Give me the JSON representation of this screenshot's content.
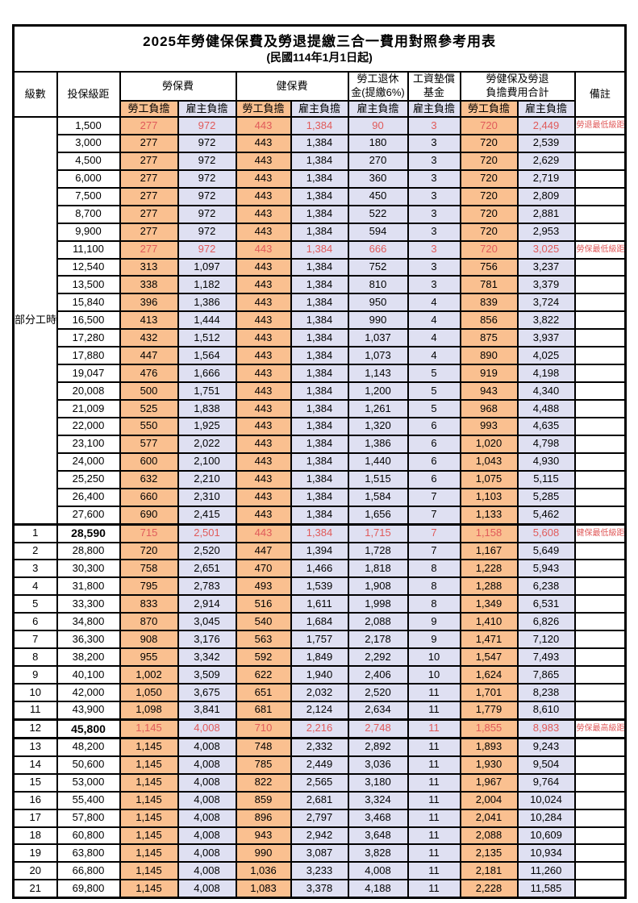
{
  "title": "2025年勞健保保費及勞退提繳三合一費用對照參考用表",
  "subtitle": "(民國114年1月1日起)",
  "header": {
    "level": "級數",
    "bracket": "投保級距",
    "labor_insurance": "勞保費",
    "health_insurance": "健保費",
    "pension_line1": "勞工退休",
    "pension_line2": "金(提繳6%)",
    "wage_fund_line1": "工資墊償",
    "wage_fund_line2": "基金",
    "total_line1": "勞健保及勞退",
    "total_line2": "負擔費用合計",
    "remark": "備註",
    "employee": "勞工負擔",
    "employer": "雇主負擔"
  },
  "part_time_label": "部分工時",
  "part_time_rowspan": 23,
  "colors": {
    "employee_bg": "#FAC090",
    "employer_bg": "#DFE0F2",
    "highlight_text": "#E05A5A",
    "border": "#000000"
  },
  "rows": [
    {
      "level": "",
      "bracket": "1,500",
      "values": [
        "277",
        "972",
        "443",
        "1,384",
        "90",
        "3",
        "720",
        "2,449"
      ],
      "remark": "勞退最低級距",
      "highlight": true,
      "bold_bracket": false,
      "section_start": false
    },
    {
      "level": "",
      "bracket": "3,000",
      "values": [
        "277",
        "972",
        "443",
        "1,384",
        "180",
        "3",
        "720",
        "2,539"
      ],
      "remark": "",
      "highlight": false,
      "bold_bracket": false,
      "section_start": false
    },
    {
      "level": "",
      "bracket": "4,500",
      "values": [
        "277",
        "972",
        "443",
        "1,384",
        "270",
        "3",
        "720",
        "2,629"
      ],
      "remark": "",
      "highlight": false,
      "bold_bracket": false,
      "section_start": false
    },
    {
      "level": "",
      "bracket": "6,000",
      "values": [
        "277",
        "972",
        "443",
        "1,384",
        "360",
        "3",
        "720",
        "2,719"
      ],
      "remark": "",
      "highlight": false,
      "bold_bracket": false,
      "section_start": false
    },
    {
      "level": "",
      "bracket": "7,500",
      "values": [
        "277",
        "972",
        "443",
        "1,384",
        "450",
        "3",
        "720",
        "2,809"
      ],
      "remark": "",
      "highlight": false,
      "bold_bracket": false,
      "section_start": false
    },
    {
      "level": "",
      "bracket": "8,700",
      "values": [
        "277",
        "972",
        "443",
        "1,384",
        "522",
        "3",
        "720",
        "2,881"
      ],
      "remark": "",
      "highlight": false,
      "bold_bracket": false,
      "section_start": false
    },
    {
      "level": "",
      "bracket": "9,900",
      "values": [
        "277",
        "972",
        "443",
        "1,384",
        "594",
        "3",
        "720",
        "2,953"
      ],
      "remark": "",
      "highlight": false,
      "bold_bracket": false,
      "section_start": false
    },
    {
      "level": "",
      "bracket": "11,100",
      "values": [
        "277",
        "972",
        "443",
        "1,384",
        "666",
        "3",
        "720",
        "3,025"
      ],
      "remark": "勞保最低級距",
      "highlight": true,
      "bold_bracket": false,
      "section_start": false
    },
    {
      "level": "",
      "bracket": "12,540",
      "values": [
        "313",
        "1,097",
        "443",
        "1,384",
        "752",
        "3",
        "756",
        "3,237"
      ],
      "remark": "",
      "highlight": false,
      "bold_bracket": false,
      "section_start": false
    },
    {
      "level": "",
      "bracket": "13,500",
      "values": [
        "338",
        "1,182",
        "443",
        "1,384",
        "810",
        "3",
        "781",
        "3,379"
      ],
      "remark": "",
      "highlight": false,
      "bold_bracket": false,
      "section_start": false
    },
    {
      "level": "",
      "bracket": "15,840",
      "values": [
        "396",
        "1,386",
        "443",
        "1,384",
        "950",
        "4",
        "839",
        "3,724"
      ],
      "remark": "",
      "highlight": false,
      "bold_bracket": false,
      "section_start": false
    },
    {
      "level": "",
      "bracket": "16,500",
      "values": [
        "413",
        "1,444",
        "443",
        "1,384",
        "990",
        "4",
        "856",
        "3,822"
      ],
      "remark": "",
      "highlight": false,
      "bold_bracket": false,
      "section_start": false
    },
    {
      "level": "",
      "bracket": "17,280",
      "values": [
        "432",
        "1,512",
        "443",
        "1,384",
        "1,037",
        "4",
        "875",
        "3,937"
      ],
      "remark": "",
      "highlight": false,
      "bold_bracket": false,
      "section_start": false
    },
    {
      "level": "",
      "bracket": "17,880",
      "values": [
        "447",
        "1,564",
        "443",
        "1,384",
        "1,073",
        "4",
        "890",
        "4,025"
      ],
      "remark": "",
      "highlight": false,
      "bold_bracket": false,
      "section_start": false
    },
    {
      "level": "",
      "bracket": "19,047",
      "values": [
        "476",
        "1,666",
        "443",
        "1,384",
        "1,143",
        "5",
        "919",
        "4,198"
      ],
      "remark": "",
      "highlight": false,
      "bold_bracket": false,
      "section_start": false
    },
    {
      "level": "",
      "bracket": "20,008",
      "values": [
        "500",
        "1,751",
        "443",
        "1,384",
        "1,200",
        "5",
        "943",
        "4,340"
      ],
      "remark": "",
      "highlight": false,
      "bold_bracket": false,
      "section_start": false
    },
    {
      "level": "",
      "bracket": "21,009",
      "values": [
        "525",
        "1,838",
        "443",
        "1,384",
        "1,261",
        "5",
        "968",
        "4,488"
      ],
      "remark": "",
      "highlight": false,
      "bold_bracket": false,
      "section_start": false
    },
    {
      "level": "",
      "bracket": "22,000",
      "values": [
        "550",
        "1,925",
        "443",
        "1,384",
        "1,320",
        "6",
        "993",
        "4,635"
      ],
      "remark": "",
      "highlight": false,
      "bold_bracket": false,
      "section_start": false
    },
    {
      "level": "",
      "bracket": "23,100",
      "values": [
        "577",
        "2,022",
        "443",
        "1,384",
        "1,386",
        "6",
        "1,020",
        "4,798"
      ],
      "remark": "",
      "highlight": false,
      "bold_bracket": false,
      "section_start": false
    },
    {
      "level": "",
      "bracket": "24,000",
      "values": [
        "600",
        "2,100",
        "443",
        "1,384",
        "1,440",
        "6",
        "1,043",
        "4,930"
      ],
      "remark": "",
      "highlight": false,
      "bold_bracket": false,
      "section_start": false
    },
    {
      "level": "",
      "bracket": "25,250",
      "values": [
        "632",
        "2,210",
        "443",
        "1,384",
        "1,515",
        "6",
        "1,075",
        "5,115"
      ],
      "remark": "",
      "highlight": false,
      "bold_bracket": false,
      "section_start": false
    },
    {
      "level": "",
      "bracket": "26,400",
      "values": [
        "660",
        "2,310",
        "443",
        "1,384",
        "1,584",
        "7",
        "1,103",
        "5,285"
      ],
      "remark": "",
      "highlight": false,
      "bold_bracket": false,
      "section_start": false
    },
    {
      "level": "",
      "bracket": "27,600",
      "values": [
        "690",
        "2,415",
        "443",
        "1,384",
        "1,656",
        "7",
        "1,133",
        "5,462"
      ],
      "remark": "",
      "highlight": false,
      "bold_bracket": false,
      "section_start": false
    },
    {
      "level": "1",
      "bracket": "28,590",
      "values": [
        "715",
        "2,501",
        "443",
        "1,384",
        "1,715",
        "7",
        "1,158",
        "5,608"
      ],
      "remark": "健保最低級距",
      "highlight": true,
      "bold_bracket": true,
      "section_start": true
    },
    {
      "level": "2",
      "bracket": "28,800",
      "values": [
        "720",
        "2,520",
        "447",
        "1,394",
        "1,728",
        "7",
        "1,167",
        "5,649"
      ],
      "remark": "",
      "highlight": false,
      "bold_bracket": false,
      "section_start": false
    },
    {
      "level": "3",
      "bracket": "30,300",
      "values": [
        "758",
        "2,651",
        "470",
        "1,466",
        "1,818",
        "8",
        "1,228",
        "5,943"
      ],
      "remark": "",
      "highlight": false,
      "bold_bracket": false,
      "section_start": false
    },
    {
      "level": "4",
      "bracket": "31,800",
      "values": [
        "795",
        "2,783",
        "493",
        "1,539",
        "1,908",
        "8",
        "1,288",
        "6,238"
      ],
      "remark": "",
      "highlight": false,
      "bold_bracket": false,
      "section_start": false
    },
    {
      "level": "5",
      "bracket": "33,300",
      "values": [
        "833",
        "2,914",
        "516",
        "1,611",
        "1,998",
        "8",
        "1,349",
        "6,531"
      ],
      "remark": "",
      "highlight": false,
      "bold_bracket": false,
      "section_start": false
    },
    {
      "level": "6",
      "bracket": "34,800",
      "values": [
        "870",
        "3,045",
        "540",
        "1,684",
        "2,088",
        "9",
        "1,410",
        "6,826"
      ],
      "remark": "",
      "highlight": false,
      "bold_bracket": false,
      "section_start": false
    },
    {
      "level": "7",
      "bracket": "36,300",
      "values": [
        "908",
        "3,176",
        "563",
        "1,757",
        "2,178",
        "9",
        "1,471",
        "7,120"
      ],
      "remark": "",
      "highlight": false,
      "bold_bracket": false,
      "section_start": false
    },
    {
      "level": "8",
      "bracket": "38,200",
      "values": [
        "955",
        "3,342",
        "592",
        "1,849",
        "2,292",
        "10",
        "1,547",
        "7,493"
      ],
      "remark": "",
      "highlight": false,
      "bold_bracket": false,
      "section_start": false
    },
    {
      "level": "9",
      "bracket": "40,100",
      "values": [
        "1,002",
        "3,509",
        "622",
        "1,940",
        "2,406",
        "10",
        "1,624",
        "7,865"
      ],
      "remark": "",
      "highlight": false,
      "bold_bracket": false,
      "section_start": false
    },
    {
      "level": "10",
      "bracket": "42,000",
      "values": [
        "1,050",
        "3,675",
        "651",
        "2,032",
        "2,520",
        "11",
        "1,701",
        "8,238"
      ],
      "remark": "",
      "highlight": false,
      "bold_bracket": false,
      "section_start": false
    },
    {
      "level": "11",
      "bracket": "43,900",
      "values": [
        "1,098",
        "3,841",
        "681",
        "2,124",
        "2,634",
        "11",
        "1,779",
        "8,610"
      ],
      "remark": "",
      "highlight": false,
      "bold_bracket": false,
      "section_start": false
    },
    {
      "level": "12",
      "bracket": "45,800",
      "values": [
        "1,145",
        "4,008",
        "710",
        "2,216",
        "2,748",
        "11",
        "1,855",
        "8,983"
      ],
      "remark": "勞保最高級距",
      "highlight": true,
      "bold_bracket": true,
      "section_start": true
    },
    {
      "level": "13",
      "bracket": "48,200",
      "values": [
        "1,145",
        "4,008",
        "748",
        "2,332",
        "2,892",
        "11",
        "1,893",
        "9,243"
      ],
      "remark": "",
      "highlight": false,
      "bold_bracket": false,
      "section_start": true
    },
    {
      "level": "14",
      "bracket": "50,600",
      "values": [
        "1,145",
        "4,008",
        "785",
        "2,449",
        "3,036",
        "11",
        "1,930",
        "9,504"
      ],
      "remark": "",
      "highlight": false,
      "bold_bracket": false,
      "section_start": false
    },
    {
      "level": "15",
      "bracket": "53,000",
      "values": [
        "1,145",
        "4,008",
        "822",
        "2,565",
        "3,180",
        "11",
        "1,967",
        "9,764"
      ],
      "remark": "",
      "highlight": false,
      "bold_bracket": false,
      "section_start": false
    },
    {
      "level": "16",
      "bracket": "55,400",
      "values": [
        "1,145",
        "4,008",
        "859",
        "2,681",
        "3,324",
        "11",
        "2,004",
        "10,024"
      ],
      "remark": "",
      "highlight": false,
      "bold_bracket": false,
      "section_start": false
    },
    {
      "level": "17",
      "bracket": "57,800",
      "values": [
        "1,145",
        "4,008",
        "896",
        "2,797",
        "3,468",
        "11",
        "2,041",
        "10,284"
      ],
      "remark": "",
      "highlight": false,
      "bold_bracket": false,
      "section_start": false
    },
    {
      "level": "18",
      "bracket": "60,800",
      "values": [
        "1,145",
        "4,008",
        "943",
        "2,942",
        "3,648",
        "11",
        "2,088",
        "10,609"
      ],
      "remark": "",
      "highlight": false,
      "bold_bracket": false,
      "section_start": false
    },
    {
      "level": "19",
      "bracket": "63,800",
      "values": [
        "1,145",
        "4,008",
        "990",
        "3,087",
        "3,828",
        "11",
        "2,135",
        "10,934"
      ],
      "remark": "",
      "highlight": false,
      "bold_bracket": false,
      "section_start": false
    },
    {
      "level": "20",
      "bracket": "66,800",
      "values": [
        "1,145",
        "4,008",
        "1,036",
        "3,233",
        "4,008",
        "11",
        "2,181",
        "11,260"
      ],
      "remark": "",
      "highlight": false,
      "bold_bracket": false,
      "section_start": false
    },
    {
      "level": "21",
      "bracket": "69,800",
      "values": [
        "1,145",
        "4,008",
        "1,083",
        "3,378",
        "4,188",
        "11",
        "2,228",
        "11,585"
      ],
      "remark": "",
      "highlight": false,
      "bold_bracket": false,
      "section_start": false
    }
  ]
}
